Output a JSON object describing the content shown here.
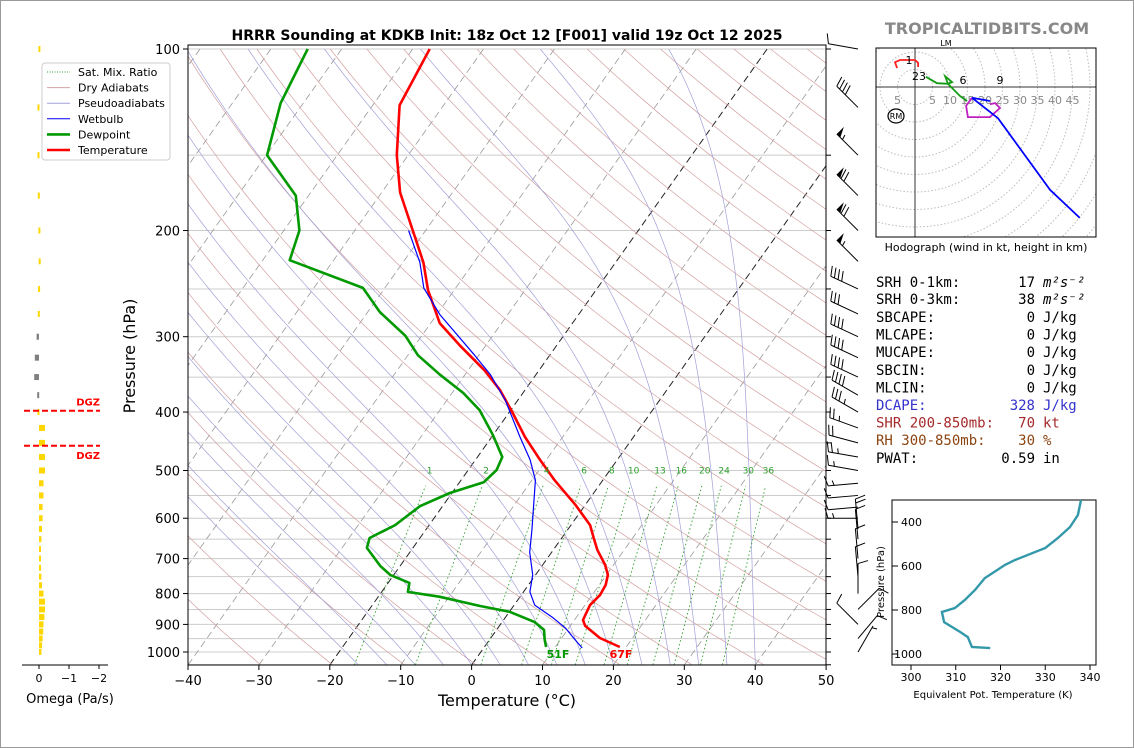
{
  "title": "HRRR Sounding at KDKB Init: 18z Oct 12 [F001] valid 19z Oct 12 2025",
  "watermark": "TROPICALTIDBITS.COM",
  "stats": [
    {
      "label": "SRH 0-1km:",
      "value": "17",
      "unit": "m²s⁻²",
      "color": "#000000"
    },
    {
      "label": "SRH 0-3km:",
      "value": "38",
      "unit": "m²s⁻²",
      "color": "#000000"
    },
    {
      "label": "SBCAPE:",
      "value": "0",
      "unit": "J/kg",
      "color": "#000000"
    },
    {
      "label": "MLCAPE:",
      "value": "0",
      "unit": "J/kg",
      "color": "#000000"
    },
    {
      "label": "MUCAPE:",
      "value": "0",
      "unit": "J/kg",
      "color": "#000000"
    },
    {
      "label": "SBCIN:",
      "value": "0",
      "unit": "J/kg",
      "color": "#000000"
    },
    {
      "label": "MLCIN:",
      "value": "0",
      "unit": "J/kg",
      "color": "#000000"
    },
    {
      "label": "DCAPE:",
      "value": "328",
      "unit": "J/kg",
      "color": "#3333cc"
    },
    {
      "label": "SHR 200-850mb:",
      "value": "70",
      "unit": "kt",
      "color": "#a52a2a"
    },
    {
      "label": "RH 300-850mb:",
      "value": "30",
      "unit": "%",
      "color": "#8b4513"
    },
    {
      "label": "PWAT:",
      "value": "0.59",
      "unit": "in",
      "color": "#000000"
    }
  ],
  "chart_data": [
    {
      "type": "line",
      "name": "skew-t",
      "xlabel": "Temperature (°C)",
      "ylabel": "Pressure (hPa)",
      "xlim": [
        -40,
        50
      ],
      "ylim": [
        1050,
        100
      ],
      "yscale": "log",
      "skewed": true,
      "grid": true,
      "xticks": [
        "−40",
        "−30",
        "−20",
        "−10",
        "0",
        "10",
        "20",
        "30",
        "40",
        "50"
      ],
      "xtick_values": [
        -40,
        -30,
        -20,
        -10,
        0,
        10,
        20,
        30,
        40,
        50
      ],
      "yticks": [
        "100",
        "200",
        "300",
        "400",
        "500",
        "600",
        "700",
        "800",
        "900",
        "1000"
      ],
      "ytick_values": [
        100,
        200,
        300,
        400,
        500,
        600,
        700,
        800,
        900,
        1000
      ],
      "legend": {
        "placement": "top-left",
        "entries": [
          {
            "label": "Sat. Mix. Ratio",
            "color": "#2ca02c",
            "style": "dotted"
          },
          {
            "label": "Dry Adiabats",
            "color": "#d4a0a0",
            "style": "solid"
          },
          {
            "label": "Pseudoadiabats",
            "color": "#a0a0d8",
            "style": "solid"
          },
          {
            "label": "Wetbulb",
            "color": "#0000ff",
            "style": "solid"
          },
          {
            "label": "Dewpoint",
            "color": "#009900",
            "style": "thick"
          },
          {
            "label": "Temperature",
            "color": "#ff0000",
            "style": "thick"
          }
        ]
      },
      "mixing_ratio_labels": [
        "1",
        "2",
        "4",
        "6",
        "8",
        "10",
        "13",
        "16",
        "20",
        "24",
        "30",
        "36"
      ],
      "mixing_ratio_values": [
        1,
        2,
        4,
        6,
        8,
        10,
        13,
        16,
        20,
        24,
        30,
        36
      ],
      "surface_labels": {
        "dewpoint": "51F",
        "temperature": "67F"
      },
      "series": [
        {
          "name": "Temperature",
          "color": "#ff0000",
          "p": [
            981,
            948,
            905,
            885,
            836,
            804,
            774,
            745,
            717,
            677,
            647,
            616,
            570,
            519,
            480,
            440,
            400,
            368,
            341,
            310,
            285,
            251,
            226,
            200,
            173,
            150,
            124,
            100
          ],
          "t": [
            19.1,
            15.4,
            12.1,
            11.2,
            10.7,
            11.1,
            10.9,
            10.2,
            8.8,
            6.2,
            4.5,
            2.7,
            -1.4,
            -6.8,
            -10.9,
            -15.3,
            -19.6,
            -23.5,
            -27.7,
            -33.7,
            -38.7,
            -43.7,
            -47.1,
            -51.8,
            -57.4,
            -61.6,
            -66.2,
            -67.6
          ]
        },
        {
          "name": "Dewpoint",
          "color": "#009900",
          "p": [
            981,
            955,
            919,
            892,
            858,
            839,
            810,
            795,
            768,
            745,
            720,
            672,
            647,
            616,
            573,
            545,
            523,
            499,
            475,
            437,
            397,
            372,
            347,
            322,
            299,
            273,
            249,
            224,
            200,
            175,
            150,
            123,
            100
          ],
          "t": [
            8.7,
            7.8,
            6.7,
            4.6,
            0.1,
            -4.7,
            -11.3,
            -16.3,
            -17.0,
            -20.5,
            -22.8,
            -26.5,
            -27.1,
            -24.8,
            -23.2,
            -20.3,
            -16.6,
            -16.0,
            -16.5,
            -20.0,
            -24.4,
            -28.4,
            -33.5,
            -38.6,
            -42.3,
            -48.3,
            -53.1,
            -66.2,
            -67.8,
            -71.8,
            -79.9,
            -83.2,
            -84.8
          ]
        },
        {
          "name": "Wetbulb",
          "color": "#0000ff",
          "p": [
            985,
            955,
            912,
            878,
            836,
            795,
            745,
            683,
            628,
            519,
            480,
            440,
            382,
            347,
            322,
            276,
            249,
            226,
            200
          ],
          "t": [
            13.9,
            12.1,
            9.5,
            6.8,
            2.9,
            0.9,
            -0.4,
            -3.1,
            -5.0,
            -9.5,
            -12.3,
            -16.0,
            -21.8,
            -26.4,
            -30.6,
            -39.5,
            -44.5,
            -47.6,
            -52.4
          ]
        }
      ],
      "wind_barbs": [
        {
          "p": 100,
          "dir": 280,
          "spd": 10
        },
        {
          "p": 125,
          "dir": 315,
          "spd": 40
        },
        {
          "p": 150,
          "dir": 315,
          "spd": 55
        },
        {
          "p": 175,
          "dir": 315,
          "spd": 70
        },
        {
          "p": 200,
          "dir": 315,
          "spd": 70
        },
        {
          "p": 225,
          "dir": 315,
          "spd": 55
        },
        {
          "p": 250,
          "dir": 295,
          "spd": 40
        },
        {
          "p": 275,
          "dir": 295,
          "spd": 30
        },
        {
          "p": 300,
          "dir": 295,
          "spd": 40
        },
        {
          "p": 325,
          "dir": 295,
          "spd": 40
        },
        {
          "p": 350,
          "dir": 295,
          "spd": 40
        },
        {
          "p": 375,
          "dir": 300,
          "spd": 40
        },
        {
          "p": 400,
          "dir": 300,
          "spd": 35
        },
        {
          "p": 425,
          "dir": 290,
          "spd": 25
        },
        {
          "p": 450,
          "dir": 285,
          "spd": 20
        },
        {
          "p": 475,
          "dir": 280,
          "spd": 25
        },
        {
          "p": 500,
          "dir": 280,
          "spd": 15
        },
        {
          "p": 525,
          "dir": 265,
          "spd": 15
        },
        {
          "p": 550,
          "dir": 265,
          "spd": 10
        },
        {
          "p": 575,
          "dir": 265,
          "spd": 10
        },
        {
          "p": 600,
          "dir": 270,
          "spd": 15
        },
        {
          "p": 625,
          "dir": 355,
          "spd": 20
        },
        {
          "p": 650,
          "dir": 355,
          "spd": 10
        },
        {
          "p": 700,
          "dir": 355,
          "spd": 10
        },
        {
          "p": 750,
          "dir": 355,
          "spd": 10
        },
        {
          "p": 800,
          "dir": 0,
          "spd": 10
        },
        {
          "p": 850,
          "dir": 45,
          "spd": 10
        },
        {
          "p": 900,
          "dir": 315,
          "spd": 10
        },
        {
          "p": 950,
          "dir": 40,
          "spd": 10
        },
        {
          "p": 1000,
          "dir": 30,
          "spd": 5
        }
      ]
    },
    {
      "type": "line",
      "name": "hodograph",
      "xlabel": "Hodograph (wind in kt, height in km)",
      "ring_labels": [
        "5",
        "5",
        "10",
        "15",
        "20",
        "25",
        "30",
        "35",
        "40",
        "45"
      ],
      "height_labels": [
        "1",
        "23",
        "6",
        "9"
      ],
      "storm_motion_labels": [
        "LM",
        "RM"
      ],
      "segments": [
        {
          "color": "#ff2020",
          "u": [
            -5.1,
            -5.7,
            -4.3,
            0,
            0.9,
            0.9
          ],
          "v": [
            5.4,
            7.1,
            7.7,
            7.7,
            6.9,
            5.7
          ]
        },
        {
          "color": "#139b13",
          "u": [
            3.1,
            6.3,
            9.4,
            10.6,
            8.6,
            9.4,
            12.9,
            14.9
          ],
          "v": [
            2.9,
            1.1,
            0.9,
            1.4,
            3.1,
            0.9,
            -2.6,
            -4.0
          ]
        },
        {
          "color": "#c020c0",
          "u": [
            16.3,
            14.6,
            15.1,
            21.4,
            24.3,
            22.9,
            21.4
          ],
          "v": [
            -3.1,
            -5.4,
            -8.6,
            -8.6,
            -6.0,
            -4.6,
            -4.9
          ]
        },
        {
          "color": "#0000ff",
          "u": [
            21.4,
            16.3,
            23.7,
            38.6,
            47.1
          ],
          "v": [
            -4.0,
            -3.1,
            -8.9,
            -29.4,
            -37.4
          ]
        }
      ]
    },
    {
      "type": "line",
      "name": "theta-e",
      "xlabel": "Equivalent Pot. Temperature (K)",
      "ylabel": "Pressure (hPa)",
      "xlim": [
        296,
        342
      ],
      "ylim": [
        1050,
        300
      ],
      "xticks": [
        "300",
        "310",
        "320",
        "330",
        "340"
      ],
      "xtick_values": [
        300,
        310,
        320,
        330,
        340
      ],
      "yticks": [
        "400",
        "600",
        "800",
        "1000"
      ],
      "ytick_values": [
        400,
        600,
        800,
        1000
      ],
      "color": "#3399aa",
      "p": [
        300,
        368,
        423,
        473,
        518,
        573,
        595,
        655,
        709,
        755,
        791,
        809,
        855,
        900,
        923,
        968,
        973
      ],
      "theta_e": [
        338.0,
        337.3,
        335.5,
        332.8,
        330.0,
        323.2,
        321.0,
        316.5,
        314.3,
        312.0,
        309.8,
        306.9,
        307.4,
        311.0,
        312.7,
        313.6,
        317.7
      ]
    },
    {
      "type": "bar",
      "name": "omega",
      "xlabel": "Omega (Pa/s)",
      "xticks": [
        "0",
        "−1",
        "−2"
      ],
      "xtick_values": [
        0,
        -1,
        -2
      ],
      "dgz_label": "DGZ",
      "dgz_pressures": [
        398,
        455
      ],
      "colors": {
        "weak": "#ffd700",
        "subsiding": "#808080",
        "dgz": "#ff0000"
      },
      "p": [
        100,
        125,
        150,
        175,
        200,
        225,
        250,
        275,
        300,
        325,
        350,
        375,
        400,
        425,
        450,
        475,
        500,
        525,
        550,
        575,
        600,
        625,
        650,
        675,
        700,
        725,
        750,
        775,
        800,
        825,
        850,
        875,
        900,
        925,
        950,
        975,
        1000
      ],
      "omega": [
        0.02,
        0.05,
        0.05,
        0.04,
        0.02,
        0.01,
        0.03,
        0.04,
        0.08,
        0.14,
        0.16,
        0.06,
        0.05,
        -0.2,
        -0.2,
        -0.2,
        -0.2,
        -0.15,
        -0.15,
        -0.12,
        -0.12,
        -0.1,
        -0.08,
        -0.05,
        -0.03,
        -0.04,
        -0.08,
        -0.1,
        -0.15,
        -0.2,
        -0.2,
        -0.18,
        -0.15,
        -0.14,
        -0.12,
        -0.1,
        -0.08
      ]
    }
  ]
}
